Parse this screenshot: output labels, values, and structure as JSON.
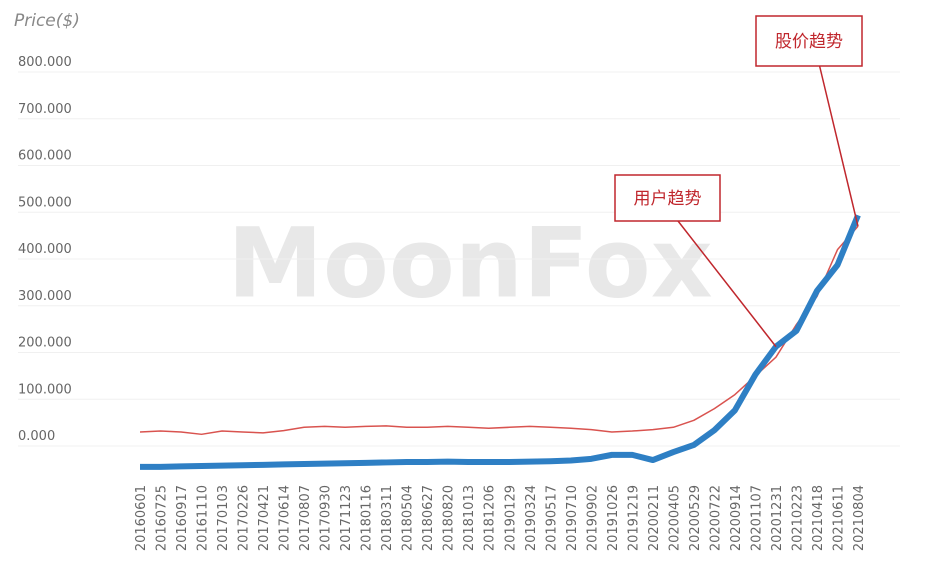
{
  "chart_data": {
    "type": "line",
    "y_axis_label": "Price($)",
    "watermark": "MoonFox",
    "categories": [
      "20160601",
      "20160725",
      "20160917",
      "20161110",
      "20170103",
      "20170226",
      "20170421",
      "20170614",
      "20170807",
      "20170930",
      "20171123",
      "20180116",
      "20180311",
      "20180504",
      "20180627",
      "20180820",
      "20181013",
      "20181206",
      "20190129",
      "20190324",
      "20190517",
      "20190710",
      "20190902",
      "20191026",
      "20191219",
      "20200211",
      "20200405",
      "20200529",
      "20200722",
      "20200914",
      "20201107",
      "20201231",
      "20210223",
      "20210418",
      "20210611",
      "20210804"
    ],
    "series": [
      {
        "name": "股价趋势",
        "color": "#d9534f",
        "values": [
          30,
          32,
          30,
          25,
          32,
          30,
          28,
          33,
          40,
          42,
          40,
          42,
          43,
          40,
          40,
          42,
          40,
          38,
          40,
          42,
          40,
          38,
          35,
          30,
          32,
          35,
          40,
          55,
          80,
          110,
          150,
          190,
          260,
          320,
          420,
          470
        ]
      },
      {
        "name": "用户趋势",
        "color": "#2e7fc4",
        "axis": "y2",
        "values": [
          0.8,
          0.8,
          0.9,
          1,
          1.1,
          1.2,
          1.3,
          1.4,
          1.5,
          1.6,
          1.7,
          1.8,
          1.9,
          2,
          2,
          2.1,
          2,
          2,
          2,
          2.1,
          2.2,
          2.4,
          2.8,
          3.8,
          3.8,
          2.5,
          4.5,
          6.3,
          10,
          15,
          24,
          31,
          35,
          45,
          51.5,
          64
        ]
      }
    ],
    "ylim": [
      0,
      800
    ],
    "yticks": [
      {
        "value": 0,
        "label": "0.000"
      },
      {
        "value": 100,
        "label": "100.000"
      },
      {
        "value": 200,
        "label": "200.000"
      },
      {
        "value": 300,
        "label": "300.000"
      },
      {
        "value": 400,
        "label": "400.000"
      },
      {
        "value": 500,
        "label": "500.000"
      },
      {
        "value": 600,
        "label": "600.000"
      },
      {
        "value": 700,
        "label": "700.000"
      },
      {
        "value": 800,
        "label": "800.000"
      }
    ],
    "y2lim": [
      0,
      100
    ],
    "grid": true,
    "annotations": [
      {
        "text": "用户趋势",
        "target": 31
      },
      {
        "text": "股价趋势",
        "target": 35
      }
    ]
  }
}
